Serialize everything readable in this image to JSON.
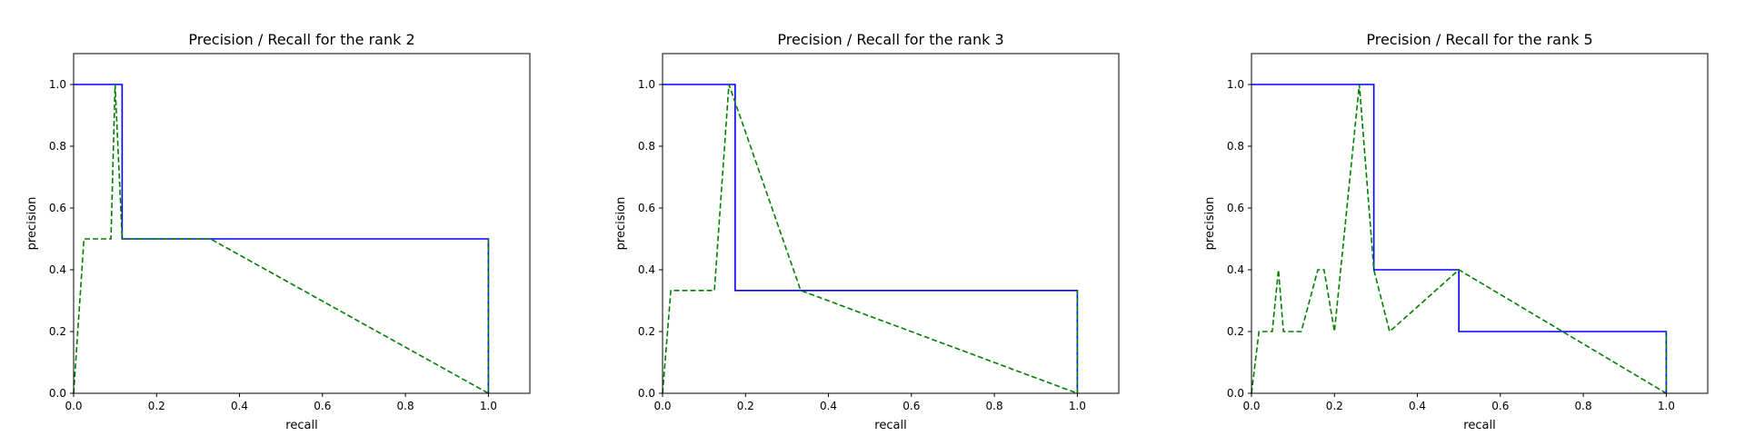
{
  "chart_data": [
    {
      "type": "line",
      "title": "Precision / Recall for the rank 2",
      "xlabel": "recall",
      "ylabel": "precision",
      "xlim": [
        0.0,
        1.1
      ],
      "ylim": [
        0.0,
        1.1
      ],
      "xticks": [
        "0.0",
        "0.2",
        "0.4",
        "0.6",
        "0.8",
        "1.0"
      ],
      "yticks": [
        "0.0",
        "0.2",
        "0.4",
        "0.6",
        "0.8",
        "1.0"
      ],
      "grid": false,
      "series": [
        {
          "color": "#0000ff",
          "style": "solid",
          "points": [
            [
              0.0,
              1.0
            ],
            [
              0.117,
              1.0
            ],
            [
              0.117,
              0.5
            ],
            [
              1.0,
              0.5
            ],
            [
              1.0,
              0.0
            ]
          ]
        },
        {
          "color": "#008000",
          "style": "dashed",
          "points": [
            [
              0.0,
              0.0
            ],
            [
              0.025,
              0.5
            ],
            [
              0.09,
              0.5
            ],
            [
              0.1,
              1.0
            ],
            [
              0.117,
              0.5
            ],
            [
              0.33,
              0.5
            ],
            [
              1.0,
              0.0
            ],
            [
              1.0,
              0.5
            ]
          ]
        }
      ]
    },
    {
      "type": "line",
      "title": "Precision / Recall for the rank 3",
      "xlabel": "recall",
      "ylabel": "precision",
      "xlim": [
        0.0,
        1.1
      ],
      "ylim": [
        0.0,
        1.1
      ],
      "xticks": [
        "0.0",
        "0.2",
        "0.4",
        "0.6",
        "0.8",
        "1.0"
      ],
      "yticks": [
        "0.0",
        "0.2",
        "0.4",
        "0.6",
        "0.8",
        "1.0"
      ],
      "grid": false,
      "series": [
        {
          "color": "#0000ff",
          "style": "solid",
          "points": [
            [
              0.0,
              1.0
            ],
            [
              0.175,
              1.0
            ],
            [
              0.175,
              0.333
            ],
            [
              1.0,
              0.333
            ],
            [
              1.0,
              0.0
            ]
          ]
        },
        {
          "color": "#008000",
          "style": "dashed",
          "points": [
            [
              0.0,
              0.0
            ],
            [
              0.02,
              0.333
            ],
            [
              0.125,
              0.333
            ],
            [
              0.16,
              1.0
            ],
            [
              0.333,
              0.333
            ],
            [
              1.0,
              0.0
            ],
            [
              1.0,
              0.333
            ]
          ]
        }
      ]
    },
    {
      "type": "line",
      "title": "Precision / Recall for the rank 5",
      "xlabel": "recall",
      "ylabel": "precision",
      "xlim": [
        0.0,
        1.1
      ],
      "ylim": [
        0.0,
        1.1
      ],
      "xticks": [
        "0.0",
        "0.2",
        "0.4",
        "0.6",
        "0.8",
        "1.0"
      ],
      "yticks": [
        "0.0",
        "0.2",
        "0.4",
        "0.6",
        "0.8",
        "1.0"
      ],
      "grid": false,
      "series": [
        {
          "color": "#0000ff",
          "style": "solid",
          "points": [
            [
              0.0,
              1.0
            ],
            [
              0.295,
              1.0
            ],
            [
              0.295,
              0.4
            ],
            [
              0.5,
              0.4
            ],
            [
              0.5,
              0.2
            ],
            [
              1.0,
              0.2
            ],
            [
              1.0,
              0.0
            ]
          ]
        },
        {
          "color": "#008000",
          "style": "dashed",
          "points": [
            [
              0.0,
              0.0
            ],
            [
              0.018,
              0.2
            ],
            [
              0.05,
              0.2
            ],
            [
              0.065,
              0.4
            ],
            [
              0.077,
              0.2
            ],
            [
              0.12,
              0.2
            ],
            [
              0.16,
              0.4
            ],
            [
              0.175,
              0.4
            ],
            [
              0.2,
              0.2
            ],
            [
              0.26,
              1.0
            ],
            [
              0.295,
              0.4
            ],
            [
              0.333,
              0.2
            ],
            [
              0.5,
              0.4
            ],
            [
              1.0,
              0.0
            ],
            [
              1.0,
              0.2
            ]
          ]
        }
      ]
    }
  ]
}
